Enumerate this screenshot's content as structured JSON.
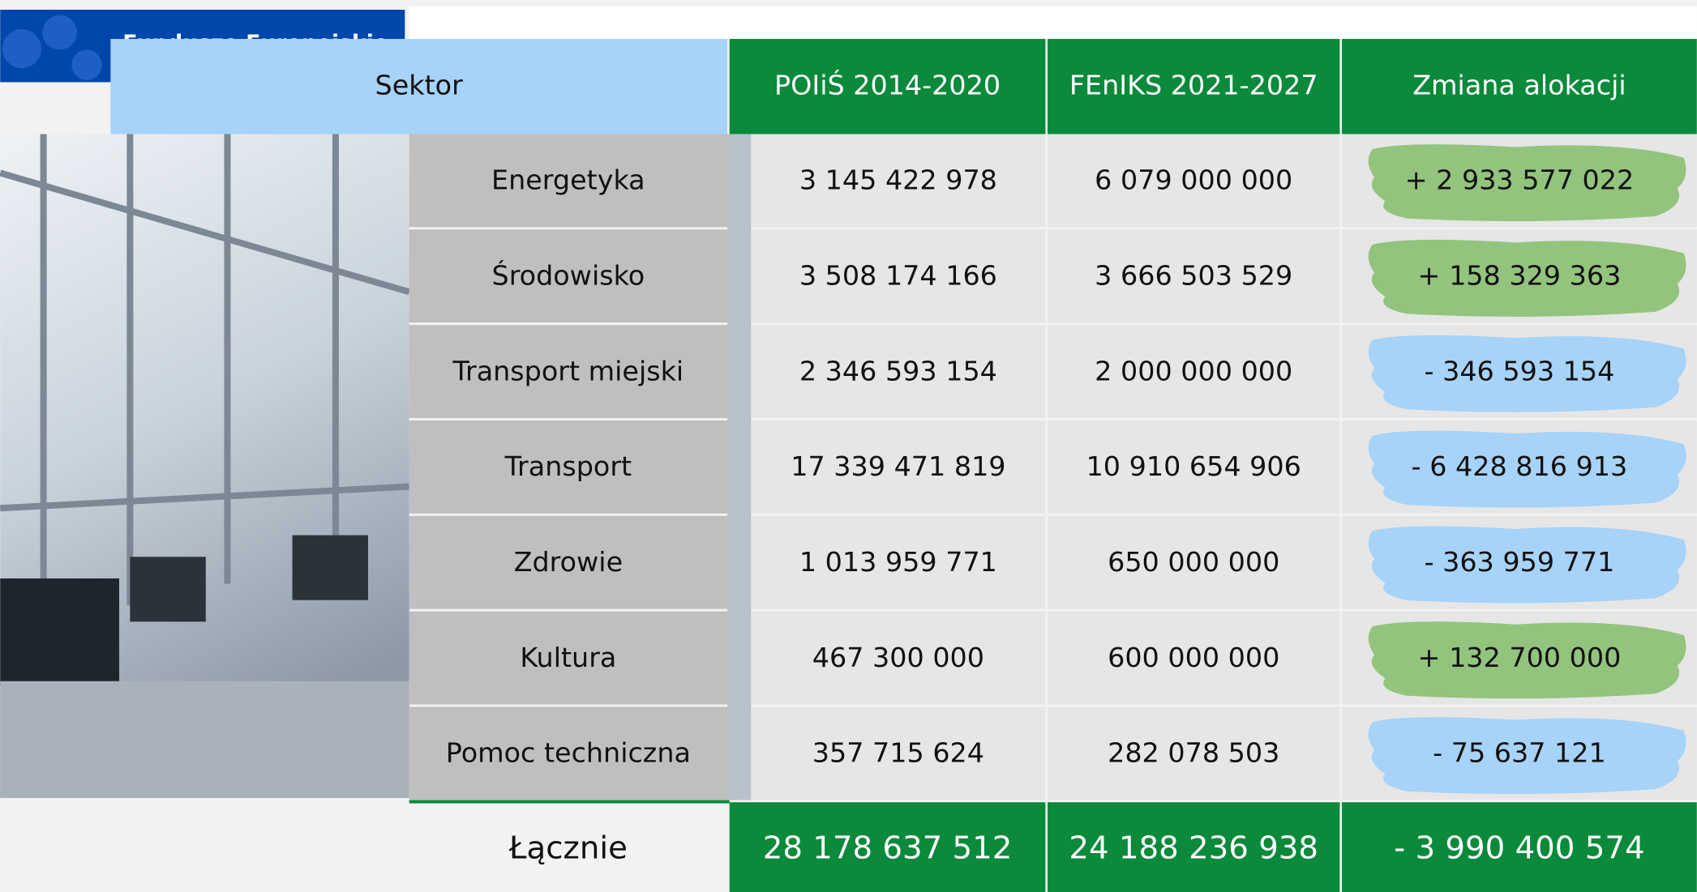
{
  "logo": "Fundusze Europejskie",
  "table": {
    "header": [
      "Sektor",
      "POIiŚ 2014-2020",
      "FEnIKS 2021-2027",
      "Zmiana alokacji"
    ],
    "rows": [
      [
        "Energetyka",
        "3 145 422 978",
        "6 079 000 000",
        "+ 2 933 577 022"
      ],
      [
        "Środowisko",
        "3 508 174 166",
        "3 666 503 529",
        "+ 158 329 363"
      ],
      [
        "Transport miejski",
        "2 346 593 154",
        "2 000 000 000",
        "- 346 593 154"
      ],
      [
        "Transport",
        "17 339 471 819",
        "10 910 654 906",
        "- 6 428 816 913"
      ],
      [
        "Zdrowie",
        "1 013 959 771",
        "650 000 000",
        "- 363 959 771"
      ],
      [
        "Kultura",
        "467 300 000",
        "600 000 000",
        "+ 132 700 000"
      ],
      [
        "Pomoc techniczna",
        "357 715 624",
        "282 078 503",
        "- 75 637 121"
      ]
    ],
    "highlight_colors": [
      "#93c47d",
      "#93c47d",
      "#a6d3f7",
      "#a6d3f7",
      "#a6d3f7",
      "#93c47d",
      "#a6d3f7"
    ],
    "total": [
      "Łącznie",
      "28 178 637 512",
      "24 188 236 938",
      "- 3 990 400 574"
    ]
  }
}
